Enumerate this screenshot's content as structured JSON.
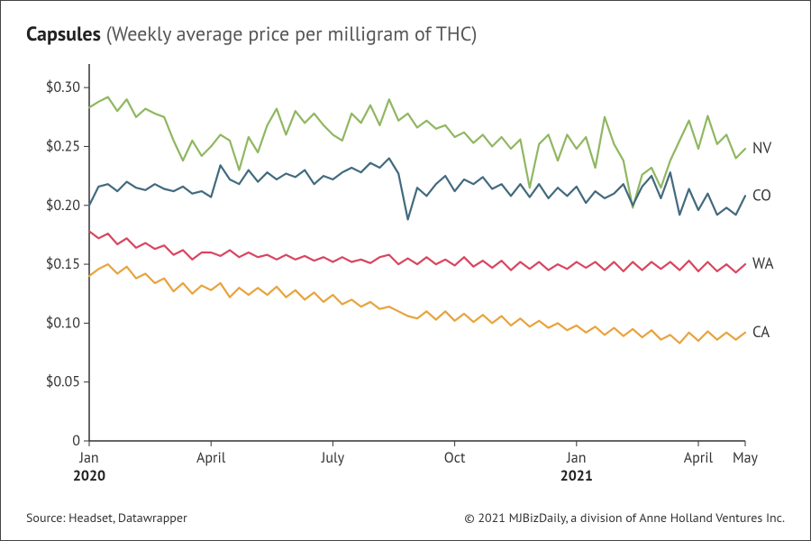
{
  "title_bold": "Capsules",
  "title_sub": " (Weekly average price per milligram of THC)",
  "footer_left": "Source: Headset, Datawrapper",
  "footer_right": "© 2021 MJBizDaily, a division of Anne Holland Ventures Inc.",
  "chart": {
    "type": "line",
    "background_color": "#ffffff",
    "axis_color": "#333333",
    "axis_line_width": 1.5,
    "tick_length": 6,
    "line_width": 2.2,
    "label_fontsize": 16,
    "ylim": [
      0,
      0.32
    ],
    "y_ticks": [
      {
        "v": 0,
        "label": "0"
      },
      {
        "v": 0.05,
        "label": "$0.05"
      },
      {
        "v": 0.1,
        "label": "$0.10"
      },
      {
        "v": 0.15,
        "label": "$0.15"
      },
      {
        "v": 0.2,
        "label": "$0.20"
      },
      {
        "v": 0.25,
        "label": "$0.25"
      },
      {
        "v": 0.3,
        "label": "$0.30"
      }
    ],
    "xlim": [
      0,
      70
    ],
    "x_ticks": [
      {
        "i": 0,
        "label": "Jan",
        "year": "2020"
      },
      {
        "i": 13,
        "label": "April",
        "year": ""
      },
      {
        "i": 26,
        "label": "July",
        "year": ""
      },
      {
        "i": 39,
        "label": "Oct",
        "year": ""
      },
      {
        "i": 52,
        "label": "Jan",
        "year": "2021"
      },
      {
        "i": 65,
        "label": "April",
        "year": ""
      },
      {
        "i": 70,
        "label": "May",
        "year": ""
      }
    ],
    "series": [
      {
        "name": "NV",
        "color": "#8fb760",
        "values": [
          0.283,
          0.288,
          0.292,
          0.28,
          0.29,
          0.275,
          0.282,
          0.278,
          0.275,
          0.255,
          0.238,
          0.255,
          0.242,
          0.25,
          0.26,
          0.255,
          0.23,
          0.258,
          0.245,
          0.268,
          0.282,
          0.26,
          0.28,
          0.27,
          0.278,
          0.268,
          0.26,
          0.255,
          0.278,
          0.27,
          0.285,
          0.268,
          0.29,
          0.272,
          0.278,
          0.266,
          0.272,
          0.265,
          0.268,
          0.258,
          0.262,
          0.253,
          0.26,
          0.25,
          0.258,
          0.248,
          0.256,
          0.215,
          0.252,
          0.26,
          0.238,
          0.26,
          0.248,
          0.258,
          0.232,
          0.275,
          0.252,
          0.238,
          0.198,
          0.226,
          0.232,
          0.215,
          0.238,
          0.255,
          0.272,
          0.248,
          0.276,
          0.252,
          0.26,
          0.24,
          0.248
        ],
        "end_label": "NV"
      },
      {
        "name": "CO",
        "color": "#426a7e",
        "values": [
          0.2,
          0.216,
          0.218,
          0.212,
          0.22,
          0.215,
          0.213,
          0.218,
          0.214,
          0.212,
          0.216,
          0.21,
          0.212,
          0.207,
          0.234,
          0.222,
          0.218,
          0.23,
          0.22,
          0.228,
          0.222,
          0.227,
          0.224,
          0.23,
          0.218,
          0.225,
          0.222,
          0.228,
          0.232,
          0.228,
          0.236,
          0.232,
          0.24,
          0.227,
          0.188,
          0.215,
          0.208,
          0.218,
          0.225,
          0.212,
          0.222,
          0.218,
          0.224,
          0.214,
          0.218,
          0.208,
          0.218,
          0.207,
          0.218,
          0.206,
          0.215,
          0.208,
          0.216,
          0.202,
          0.212,
          0.206,
          0.21,
          0.218,
          0.2,
          0.216,
          0.225,
          0.206,
          0.228,
          0.192,
          0.214,
          0.196,
          0.21,
          0.192,
          0.198,
          0.192,
          0.208
        ],
        "end_label": "CO"
      },
      {
        "name": "WA",
        "color": "#d9455f",
        "values": [
          0.178,
          0.172,
          0.176,
          0.167,
          0.172,
          0.164,
          0.168,
          0.163,
          0.166,
          0.158,
          0.162,
          0.154,
          0.16,
          0.16,
          0.157,
          0.162,
          0.156,
          0.16,
          0.156,
          0.158,
          0.154,
          0.158,
          0.154,
          0.157,
          0.153,
          0.156,
          0.152,
          0.156,
          0.152,
          0.154,
          0.151,
          0.156,
          0.158,
          0.15,
          0.155,
          0.15,
          0.156,
          0.15,
          0.154,
          0.149,
          0.156,
          0.148,
          0.153,
          0.147,
          0.153,
          0.145,
          0.152,
          0.146,
          0.152,
          0.145,
          0.15,
          0.146,
          0.152,
          0.147,
          0.152,
          0.145,
          0.152,
          0.144,
          0.152,
          0.145,
          0.152,
          0.146,
          0.152,
          0.145,
          0.153,
          0.144,
          0.152,
          0.144,
          0.15,
          0.143,
          0.15
        ],
        "end_label": "WA"
      },
      {
        "name": "CA",
        "color": "#e8a33d",
        "values": [
          0.14,
          0.146,
          0.15,
          0.142,
          0.148,
          0.138,
          0.142,
          0.134,
          0.138,
          0.127,
          0.134,
          0.125,
          0.132,
          0.128,
          0.134,
          0.122,
          0.13,
          0.124,
          0.13,
          0.124,
          0.131,
          0.122,
          0.128,
          0.12,
          0.126,
          0.118,
          0.124,
          0.116,
          0.12,
          0.114,
          0.118,
          0.112,
          0.114,
          0.11,
          0.106,
          0.104,
          0.11,
          0.103,
          0.11,
          0.102,
          0.108,
          0.101,
          0.107,
          0.1,
          0.106,
          0.098,
          0.104,
          0.097,
          0.102,
          0.096,
          0.1,
          0.094,
          0.098,
          0.092,
          0.097,
          0.09,
          0.096,
          0.089,
          0.095,
          0.088,
          0.094,
          0.086,
          0.09,
          0.083,
          0.092,
          0.085,
          0.093,
          0.086,
          0.092,
          0.086,
          0.092
        ],
        "end_label": "CA"
      }
    ]
  }
}
